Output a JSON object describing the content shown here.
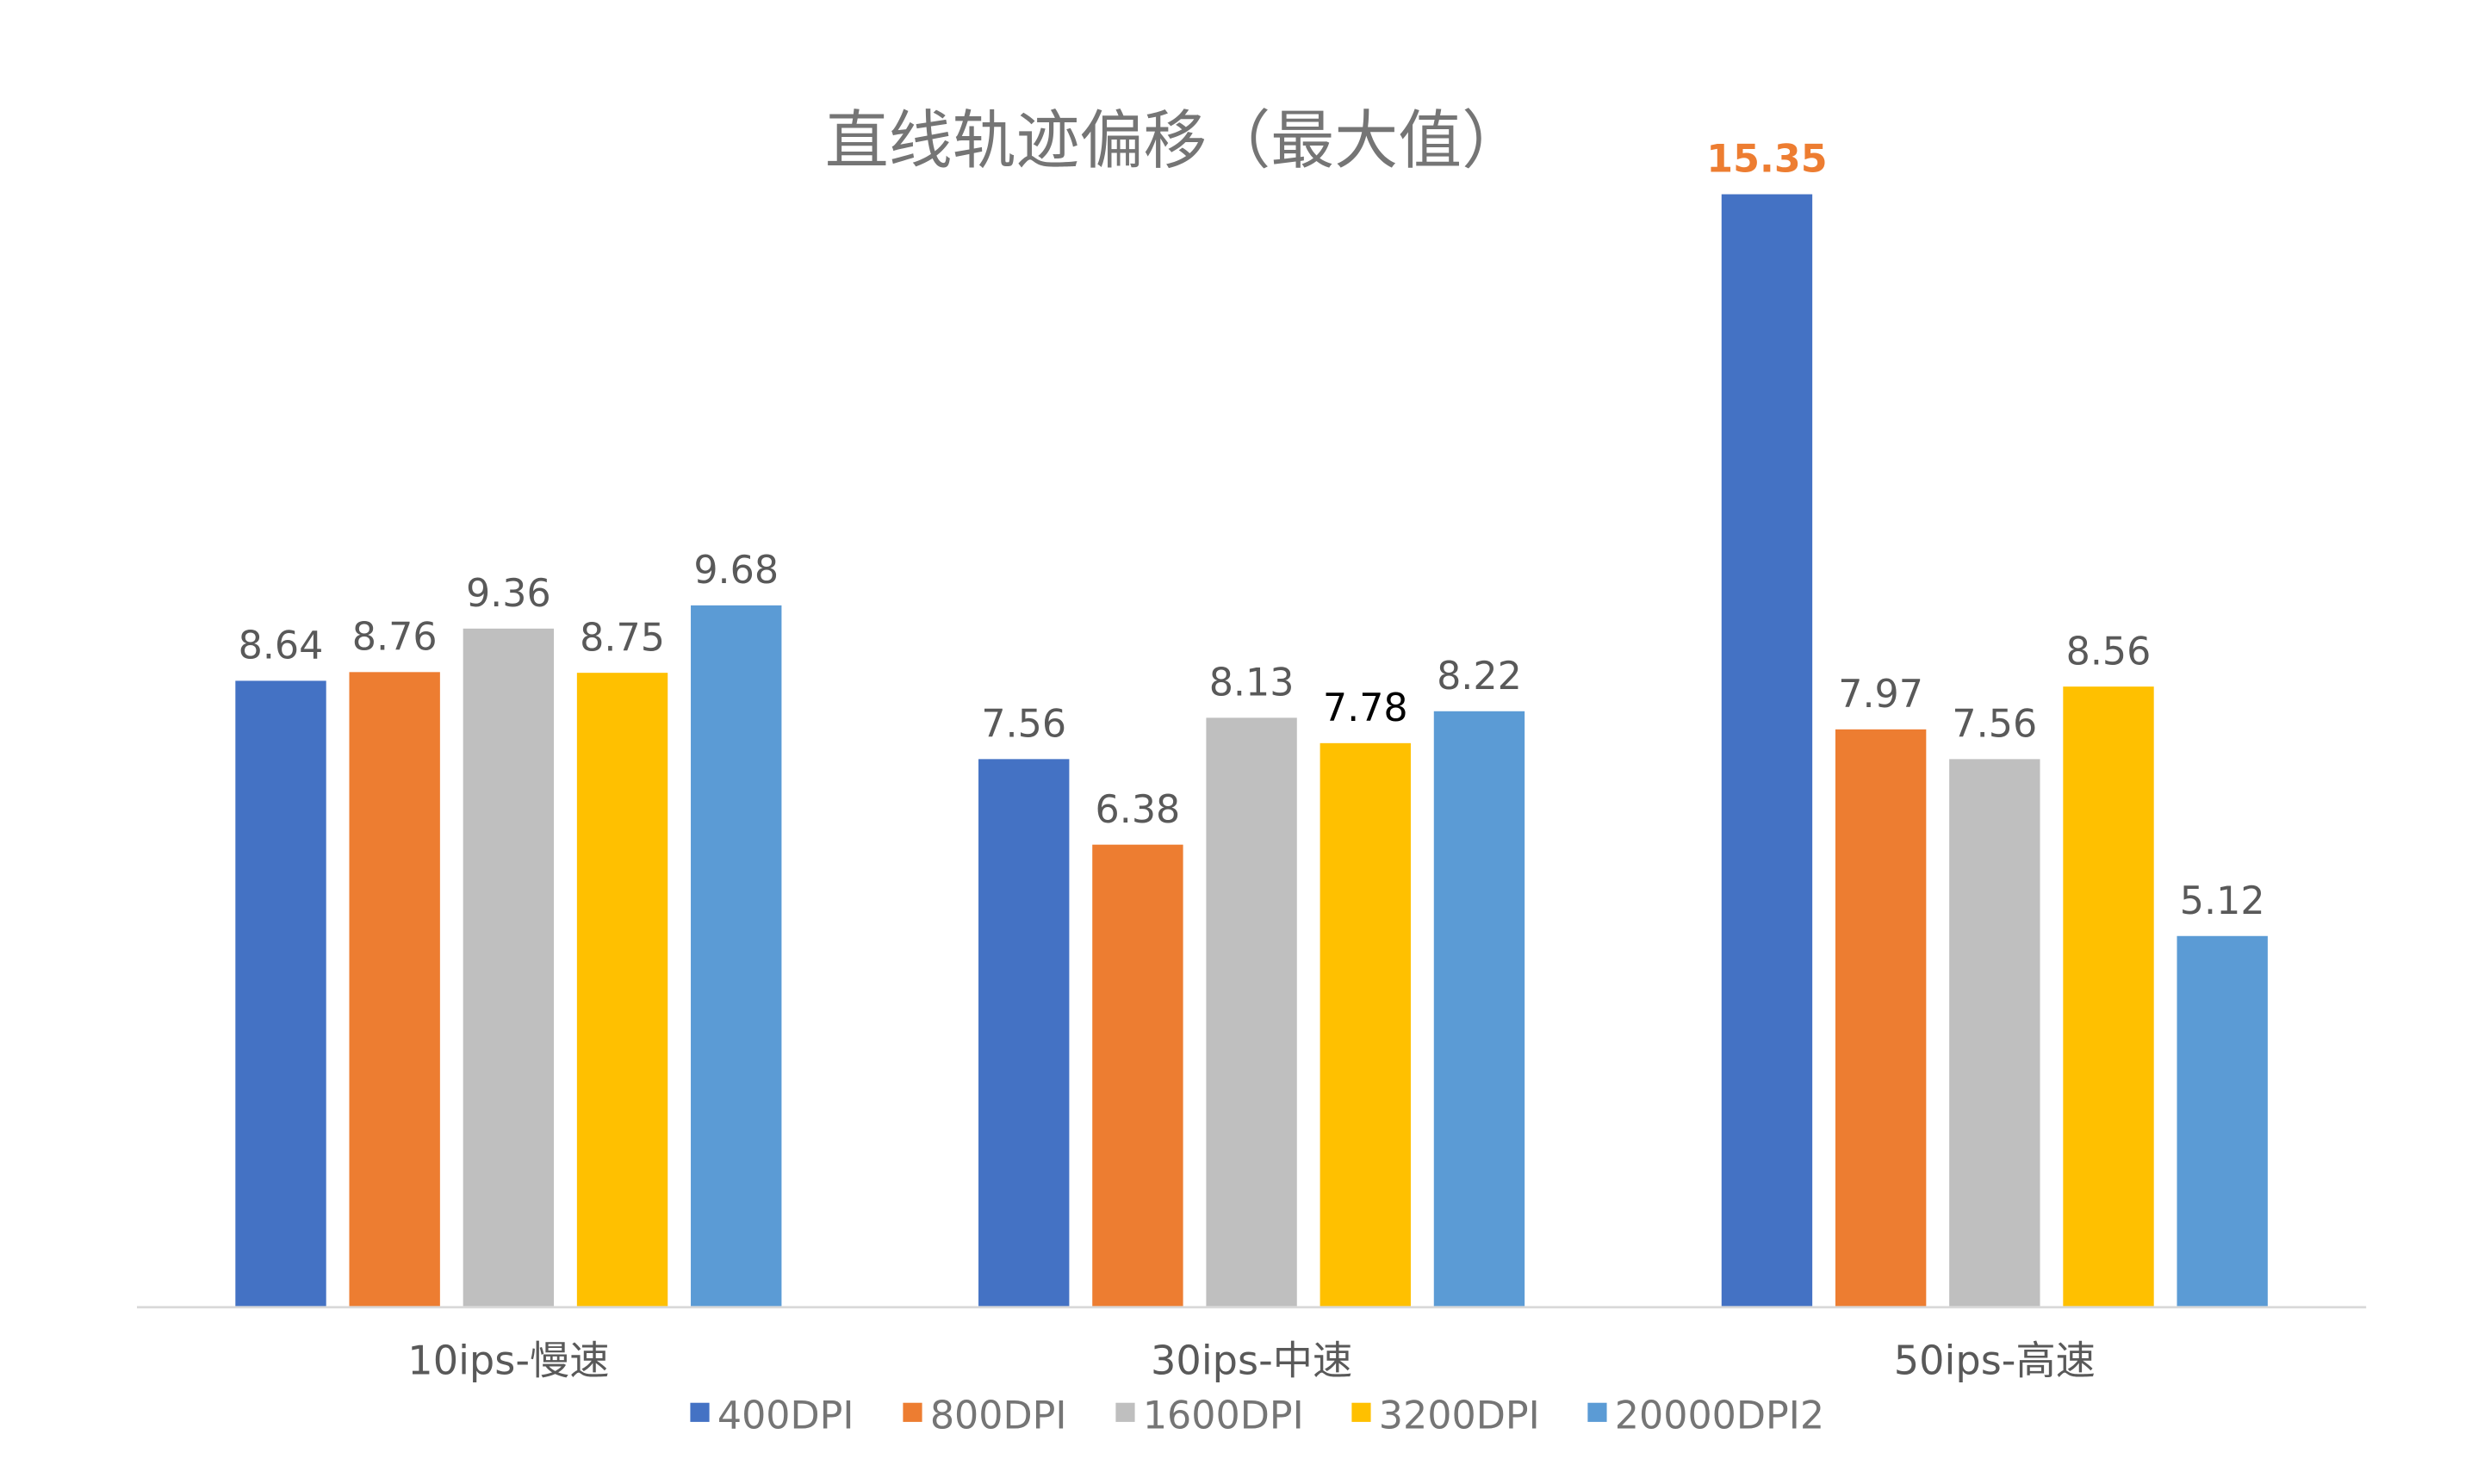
{
  "chart_data": {
    "type": "bar",
    "title": "直线轨迹偏移（最大值）",
    "categories": [
      "10ips-慢速",
      "30ips-中速",
      "50ips-高速"
    ],
    "series": [
      {
        "name": "400DPI",
        "color": "#4472C4",
        "values": [
          8.64,
          7.56,
          15.35
        ]
      },
      {
        "name": "800DPI",
        "color": "#ED7D31",
        "values": [
          8.76,
          6.38,
          7.97
        ]
      },
      {
        "name": "1600DPI",
        "color": "#BFBFBF",
        "values": [
          9.36,
          8.13,
          7.56
        ]
      },
      {
        "name": "3200DPI",
        "color": "#FFC000",
        "values": [
          8.75,
          7.78,
          8.56
        ]
      },
      {
        "name": "20000DPI2",
        "color": "#5B9BD5",
        "values": [
          9.68,
          8.22,
          5.12
        ]
      }
    ],
    "data_label_colors": {
      "default": "#595959",
      "highlighted": [
        {
          "series": "400DPI",
          "category": "50ips-高速",
          "color": "#ED7D31",
          "bold": true
        },
        {
          "series": "3200DPI",
          "category": "30ips-中速",
          "color": "#000000",
          "bold": false
        }
      ]
    },
    "ylim": [
      0,
      15.35
    ],
    "grid": false,
    "y_axis_visible": false,
    "legend_position": "bottom",
    "xlabel": "",
    "ylabel": ""
  }
}
